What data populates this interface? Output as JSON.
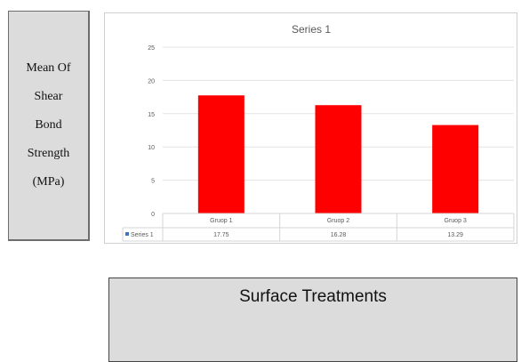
{
  "ylabel_lines": [
    "Mean Of",
    "Shear",
    "Bond",
    "Strength",
    "(MPa)"
  ],
  "xlabel": "Surface Treatments",
  "chart_data": {
    "type": "bar",
    "title": "Series 1",
    "categories": [
      "Gruop 1",
      "Gruop 2",
      "Gruop 3"
    ],
    "series": [
      {
        "name": "Series 1",
        "values": [
          17.75,
          16.28,
          13.29
        ]
      }
    ],
    "data_table": {
      "legend_label": "Series 1",
      "values": [
        "17.75",
        "16.28",
        "13.29"
      ]
    },
    "ylim": [
      0,
      25
    ],
    "yticks": [
      0,
      5,
      10,
      15,
      20,
      25
    ],
    "grid": true,
    "legend": "data table",
    "colors": {
      "bar": "#ff0000",
      "gridline": "#e3e3e3",
      "legend_key": "#4472c4",
      "table_border": "#d4d4d4"
    }
  }
}
